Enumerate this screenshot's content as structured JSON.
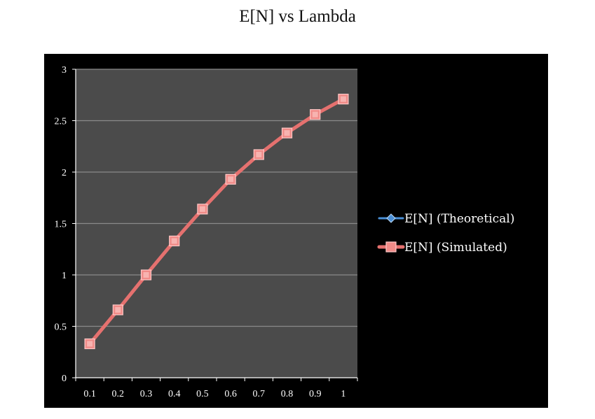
{
  "chart_data": {
    "type": "line",
    "title": "E[N] vs Lambda",
    "xlabel": "",
    "ylabel": "",
    "categories": [
      "0.1",
      "0.2",
      "0.3",
      "0.4",
      "0.5",
      "0.6",
      "0.7",
      "0.8",
      "0.9",
      "1"
    ],
    "y_ticks": [
      "0",
      "0.5",
      "1",
      "1.5",
      "2",
      "2.5",
      "3"
    ],
    "ylim": [
      0,
      3
    ],
    "grid": true,
    "legend_position": "right",
    "series": [
      {
        "name": "E[N] (Theoretical)",
        "color": "#4a8fd6",
        "marker": "diamond",
        "values": [
          0.33,
          0.66,
          1.0,
          1.33,
          1.64,
          1.93,
          2.17,
          2.38,
          2.56,
          2.71
        ]
      },
      {
        "name": "E[N] (Simulated)",
        "color": "#e5716f",
        "marker": "square",
        "values": [
          0.33,
          0.66,
          1.0,
          1.33,
          1.64,
          1.93,
          2.17,
          2.38,
          2.56,
          2.71
        ]
      }
    ],
    "colors": {
      "frame_background": "#000000",
      "plot_background": "#4b4b4b",
      "gridline": "#8a8a8a",
      "text": "#ffffff"
    }
  }
}
